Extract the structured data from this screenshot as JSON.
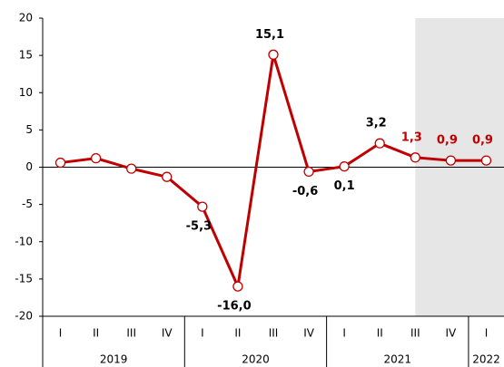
{
  "chart_data": {
    "type": "line",
    "categories": [
      "I",
      "II",
      "III",
      "IV",
      "I",
      "II",
      "III",
      "IV",
      "I",
      "II",
      "III",
      "IV",
      "I"
    ],
    "groups": [
      {
        "label": "2019",
        "count": 4
      },
      {
        "label": "2020",
        "count": 4
      },
      {
        "label": "2021",
        "count": 4
      },
      {
        "label": "2022",
        "count": 1
      }
    ],
    "series": [
      {
        "color": "#c00000",
        "values": [
          0.6,
          1.2,
          -0.2,
          -1.3,
          -5.3,
          -16.0,
          15.1,
          -0.6,
          0.1,
          3.2,
          1.3,
          0.9,
          0.9
        ],
        "value_labels": [
          null,
          null,
          null,
          null,
          "-5,3",
          "-16,0",
          "15,1",
          "-0,6",
          "0,1",
          "3,2",
          "1,3",
          "0,9",
          "0,9"
        ]
      }
    ],
    "ylim": [
      -20,
      20
    ],
    "yticks": [
      -20,
      -15,
      -10,
      -5,
      0,
      5,
      10,
      15,
      20
    ],
    "shaded_from": 10,
    "shade_color": "#e6e6e6"
  }
}
